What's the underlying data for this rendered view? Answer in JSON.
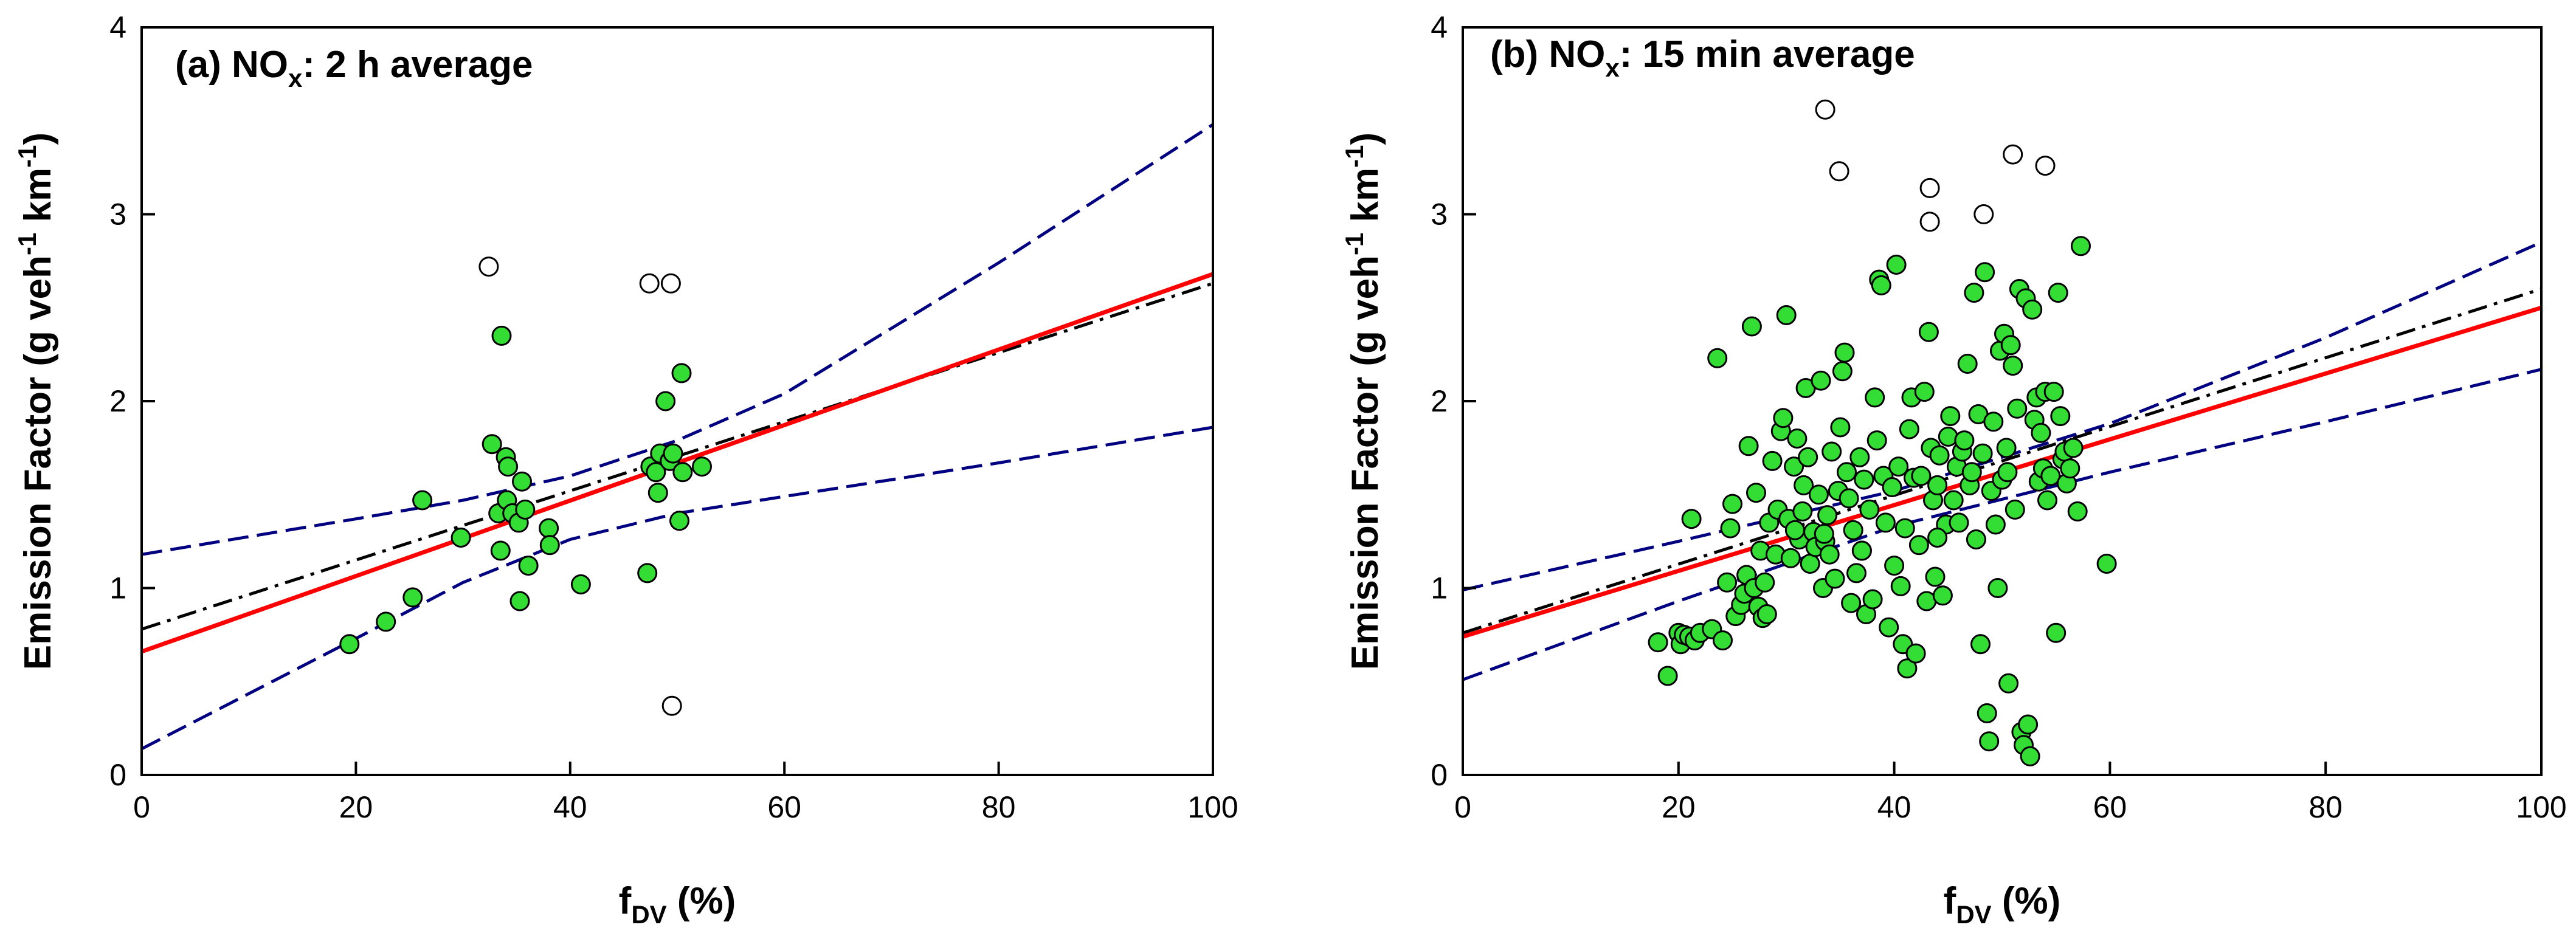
{
  "chart_data": [
    {
      "type": "scatter",
      "title_prefix": "(a) NO",
      "title_sub": "x",
      "title_suffix": ": 2 h average",
      "ylabel_main": "Emission Factor (g veh",
      "ylabel_sup1": "-1",
      "ylabel_mid": " km",
      "ylabel_sup2": "-1",
      "ylabel_end": ")",
      "xlabel_main": "f",
      "xlabel_sub": "DV",
      "xlabel_end": " (%)",
      "xlim": [
        0,
        100
      ],
      "ylim": [
        0,
        4
      ],
      "xticks": [
        "0",
        "20",
        "40",
        "60",
        "80",
        "100"
      ],
      "yticks": [
        "0",
        "1",
        "2",
        "3",
        "4"
      ],
      "grid": false,
      "series": [
        {
          "name": "data",
          "marker": "filled-circle",
          "color": "#33dd33",
          "points": [
            [
              19.4,
              0.7
            ],
            [
              22.8,
              0.82
            ],
            [
              25.3,
              0.95
            ],
            [
              26.2,
              1.47
            ],
            [
              29.8,
              1.27
            ],
            [
              32.7,
              1.77
            ],
            [
              33.3,
              1.4
            ],
            [
              33.5,
              1.2
            ],
            [
              33.6,
              2.35
            ],
            [
              34.0,
              1.7
            ],
            [
              34.1,
              1.47
            ],
            [
              34.2,
              1.65
            ],
            [
              34.6,
              1.4
            ],
            [
              35.2,
              1.35
            ],
            [
              35.3,
              0.93
            ],
            [
              35.5,
              1.57
            ],
            [
              35.8,
              1.42
            ],
            [
              36.1,
              1.12
            ],
            [
              38.0,
              1.32
            ],
            [
              38.1,
              1.23
            ],
            [
              41.0,
              1.02
            ],
            [
              47.2,
              1.08
            ],
            [
              47.5,
              1.65
            ],
            [
              48.0,
              1.62
            ],
            [
              48.2,
              1.51
            ],
            [
              48.4,
              1.72
            ],
            [
              48.9,
              2.0
            ],
            [
              49.3,
              1.68
            ],
            [
              49.6,
              1.72
            ],
            [
              50.2,
              1.36
            ],
            [
              50.5,
              1.62
            ],
            [
              50.4,
              2.15
            ],
            [
              52.3,
              1.65
            ]
          ]
        },
        {
          "name": "outliers",
          "marker": "open-circle",
          "points": [
            [
              32.4,
              2.72
            ],
            [
              47.4,
              2.63
            ],
            [
              49.4,
              2.63
            ],
            [
              49.5,
              0.37
            ]
          ]
        }
      ],
      "lines": [
        {
          "name": "regression",
          "style": "solid",
          "color": "#ff0000",
          "x": [
            0,
            100
          ],
          "y": [
            0.66,
            2.68
          ]
        },
        {
          "name": "fit",
          "style": "dash-dot",
          "color": "#000000",
          "x": [
            0,
            100
          ],
          "y": [
            0.78,
            2.63
          ]
        },
        {
          "name": "upper confidence band",
          "style": "dashed",
          "color": "#000080",
          "x": [
            0,
            20,
            30,
            40,
            50,
            60,
            80,
            100
          ],
          "y": [
            1.18,
            1.37,
            1.47,
            1.6,
            1.79,
            2.04,
            2.74,
            3.48
          ]
        },
        {
          "name": "lower confidence band",
          "style": "dashed",
          "color": "#000080",
          "x": [
            0,
            20,
            30,
            40,
            50,
            60,
            80,
            100
          ],
          "y": [
            0.14,
            0.73,
            1.03,
            1.26,
            1.4,
            1.49,
            1.67,
            1.86
          ]
        }
      ]
    },
    {
      "type": "scatter",
      "title_prefix": "(b) NO",
      "title_sub": "x",
      "title_suffix": ": 15 min average",
      "ylabel_main": "Emission Factor (g veh",
      "ylabel_sup1": "-1",
      "ylabel_mid": " km",
      "ylabel_sup2": "-1",
      "ylabel_end": ")",
      "xlabel_main": "f",
      "xlabel_sub": "DV",
      "xlabel_end": " (%)",
      "xlim": [
        0,
        100
      ],
      "ylim": [
        0,
        4
      ],
      "xticks": [
        "0",
        "20",
        "40",
        "60",
        "80",
        "100"
      ],
      "yticks": [
        "0",
        "1",
        "2",
        "3",
        "4"
      ],
      "grid": false,
      "series": [
        {
          "name": "data",
          "marker": "filled-circle",
          "color": "#33dd33",
          "points": [
            [
              18.1,
              0.71
            ],
            [
              19.0,
              0.53
            ],
            [
              20.0,
              0.76
            ],
            [
              20.2,
              0.7
            ],
            [
              20.5,
              0.75
            ],
            [
              21.0,
              0.74
            ],
            [
              21.2,
              1.37
            ],
            [
              21.5,
              0.72
            ],
            [
              22.0,
              0.76
            ],
            [
              23.1,
              0.78
            ],
            [
              23.6,
              2.23
            ],
            [
              24.1,
              0.72
            ],
            [
              24.5,
              1.03
            ],
            [
              24.8,
              1.32
            ],
            [
              25.0,
              1.45
            ],
            [
              25.3,
              0.85
            ],
            [
              25.8,
              0.91
            ],
            [
              26.1,
              0.97
            ],
            [
              26.3,
              1.07
            ],
            [
              26.5,
              1.76
            ],
            [
              26.8,
              2.4
            ],
            [
              27.0,
              1.0
            ],
            [
              27.2,
              1.51
            ],
            [
              27.4,
              0.9
            ],
            [
              27.6,
              1.2
            ],
            [
              27.8,
              0.84
            ],
            [
              28.0,
              1.03
            ],
            [
              28.2,
              0.86
            ],
            [
              28.4,
              1.35
            ],
            [
              28.7,
              1.68
            ],
            [
              29.0,
              1.18
            ],
            [
              29.2,
              1.42
            ],
            [
              29.5,
              1.84
            ],
            [
              29.7,
              1.91
            ],
            [
              30.0,
              2.46
            ],
            [
              30.2,
              1.37
            ],
            [
              30.4,
              1.16
            ],
            [
              30.7,
              1.65
            ],
            [
              31.0,
              1.8
            ],
            [
              31.2,
              1.26
            ],
            [
              31.5,
              1.41
            ],
            [
              31.6,
              1.55
            ],
            [
              31.8,
              2.07
            ],
            [
              32.0,
              1.7
            ],
            [
              32.2,
              1.13
            ],
            [
              32.5,
              1.3
            ],
            [
              32.7,
              1.22
            ],
            [
              33.0,
              1.5
            ],
            [
              33.2,
              2.11
            ],
            [
              33.4,
              1.0
            ],
            [
              33.6,
              1.25
            ],
            [
              33.8,
              1.39
            ],
            [
              34.0,
              1.18
            ],
            [
              34.2,
              1.73
            ],
            [
              34.5,
              1.05
            ],
            [
              34.8,
              1.52
            ],
            [
              35.0,
              1.86
            ],
            [
              35.2,
              2.16
            ],
            [
              35.4,
              2.26
            ],
            [
              35.6,
              1.62
            ],
            [
              35.8,
              1.48
            ],
            [
              36.0,
              0.92
            ],
            [
              36.2,
              1.31
            ],
            [
              36.5,
              1.08
            ],
            [
              36.8,
              1.7
            ],
            [
              37.0,
              1.2
            ],
            [
              37.2,
              1.58
            ],
            [
              37.4,
              0.86
            ],
            [
              37.7,
              1.42
            ],
            [
              38.0,
              0.94
            ],
            [
              38.2,
              2.02
            ],
            [
              38.4,
              1.79
            ],
            [
              38.6,
              2.65
            ],
            [
              38.8,
              2.62
            ],
            [
              39.0,
              1.6
            ],
            [
              39.2,
              1.35
            ],
            [
              39.5,
              0.79
            ],
            [
              39.8,
              1.54
            ],
            [
              40.0,
              1.12
            ],
            [
              40.2,
              2.73
            ],
            [
              40.4,
              1.65
            ],
            [
              40.6,
              1.01
            ],
            [
              40.8,
              0.7
            ],
            [
              41.0,
              1.32
            ],
            [
              41.2,
              0.57
            ],
            [
              41.4,
              1.85
            ],
            [
              41.6,
              2.02
            ],
            [
              41.8,
              1.59
            ],
            [
              42.0,
              0.65
            ],
            [
              42.3,
              1.23
            ],
            [
              42.5,
              1.6
            ],
            [
              42.8,
              2.05
            ],
            [
              43.0,
              0.93
            ],
            [
              43.2,
              2.37
            ],
            [
              43.4,
              1.75
            ],
            [
              43.6,
              1.47
            ],
            [
              43.8,
              1.06
            ],
            [
              44.0,
              1.55
            ],
            [
              44.2,
              1.71
            ],
            [
              44.5,
              0.96
            ],
            [
              44.8,
              1.34
            ],
            [
              45.0,
              1.81
            ],
            [
              45.2,
              1.92
            ],
            [
              45.5,
              1.47
            ],
            [
              45.8,
              1.65
            ],
            [
              46.0,
              1.35
            ],
            [
              46.3,
              1.73
            ],
            [
              46.5,
              1.79
            ],
            [
              46.8,
              2.2
            ],
            [
              47.0,
              1.55
            ],
            [
              47.2,
              1.62
            ],
            [
              47.4,
              2.58
            ],
            [
              47.6,
              1.26
            ],
            [
              47.8,
              1.93
            ],
            [
              48.0,
              0.7
            ],
            [
              48.2,
              1.72
            ],
            [
              48.4,
              2.69
            ],
            [
              48.6,
              0.33
            ],
            [
              48.8,
              0.18
            ],
            [
              49.0,
              1.52
            ],
            [
              49.2,
              1.89
            ],
            [
              49.4,
              1.34
            ],
            [
              49.6,
              1.0
            ],
            [
              49.8,
              2.27
            ],
            [
              50.0,
              1.58
            ],
            [
              50.2,
              2.36
            ],
            [
              50.4,
              1.75
            ],
            [
              50.6,
              0.49
            ],
            [
              50.8,
              2.3
            ],
            [
              51.0,
              2.19
            ],
            [
              51.2,
              1.42
            ],
            [
              51.4,
              1.96
            ],
            [
              51.6,
              2.6
            ],
            [
              51.8,
              0.23
            ],
            [
              52.0,
              0.16
            ],
            [
              52.2,
              2.55
            ],
            [
              52.4,
              0.27
            ],
            [
              52.6,
              0.1
            ],
            [
              52.8,
              2.49
            ],
            [
              53.0,
              1.9
            ],
            [
              53.2,
              2.02
            ],
            [
              53.4,
              1.57
            ],
            [
              53.6,
              1.83
            ],
            [
              53.8,
              1.64
            ],
            [
              54.0,
              2.05
            ],
            [
              54.2,
              1.47
            ],
            [
              54.5,
              1.6
            ],
            [
              54.8,
              2.05
            ],
            [
              55.0,
              0.76
            ],
            [
              55.2,
              2.58
            ],
            [
              55.4,
              1.92
            ],
            [
              55.6,
              1.69
            ],
            [
              55.8,
              1.73
            ],
            [
              56.0,
              1.56
            ],
            [
              56.3,
              1.64
            ],
            [
              56.6,
              1.75
            ],
            [
              57.0,
              1.41
            ],
            [
              57.3,
              2.83
            ],
            [
              59.7,
              1.13
            ],
            [
              50.5,
              1.62
            ],
            [
              44.0,
              1.27
            ],
            [
              37.0,
              1.2
            ],
            [
              30.8,
              1.31
            ],
            [
              33.5,
              1.29
            ]
          ]
        },
        {
          "name": "outliers",
          "marker": "open-circle",
          "points": [
            [
              33.6,
              3.56
            ],
            [
              34.9,
              3.23
            ],
            [
              43.3,
              3.14
            ],
            [
              43.3,
              2.96
            ],
            [
              48.3,
              3.0
            ],
            [
              51.0,
              3.32
            ],
            [
              54.0,
              3.26
            ]
          ]
        }
      ],
      "lines": [
        {
          "name": "regression",
          "style": "solid",
          "color": "#ff0000",
          "x": [
            0,
            100
          ],
          "y": [
            0.74,
            2.5
          ]
        },
        {
          "name": "fit",
          "style": "dash-dot",
          "color": "#000000",
          "x": [
            0,
            100
          ],
          "y": [
            0.76,
            2.6
          ]
        },
        {
          "name": "upper confidence band",
          "style": "dashed",
          "color": "#000080",
          "x": [
            0,
            20,
            40,
            60,
            80,
            100
          ],
          "y": [
            0.99,
            1.25,
            1.52,
            1.88,
            2.34,
            2.85
          ]
        },
        {
          "name": "lower confidence band",
          "style": "dashed",
          "color": "#000080",
          "x": [
            0,
            20,
            40,
            60,
            80,
            100
          ],
          "y": [
            0.51,
            0.93,
            1.33,
            1.62,
            1.89,
            2.17
          ]
        }
      ]
    }
  ]
}
